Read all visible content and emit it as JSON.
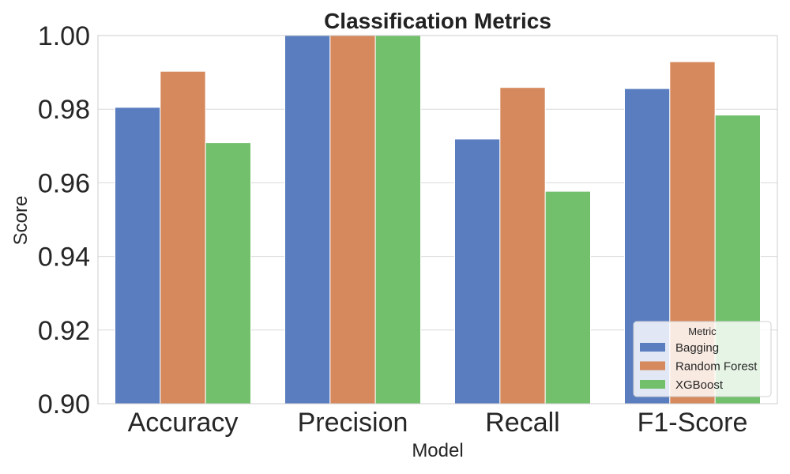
{
  "chart_data": {
    "type": "bar",
    "title": "Classification Metrics",
    "xlabel": "Model",
    "ylabel": "Score",
    "categories": [
      "Accuracy",
      "Precision",
      "Recall",
      "F1-Score"
    ],
    "series": [
      {
        "name": "Bagging",
        "values": [
          0.9805,
          1.0,
          0.9719,
          0.9856
        ]
      },
      {
        "name": "Random Forest",
        "values": [
          0.9903,
          1.0,
          0.9859,
          0.9929
        ]
      },
      {
        "name": "XGBoost",
        "values": [
          0.9709,
          1.0,
          0.9577,
          0.9784
        ]
      }
    ],
    "ylim": [
      0.9,
      1.0
    ],
    "yticks": [
      "0.90",
      "0.92",
      "0.94",
      "0.96",
      "0.98",
      "1.00"
    ],
    "grid": true,
    "legend": {
      "title": "Metric",
      "placement": "lower-right"
    },
    "colors": {
      "Bagging": "#5a7dc0",
      "Random Forest": "#d6895c",
      "XGBoost": "#72bf6c"
    }
  }
}
